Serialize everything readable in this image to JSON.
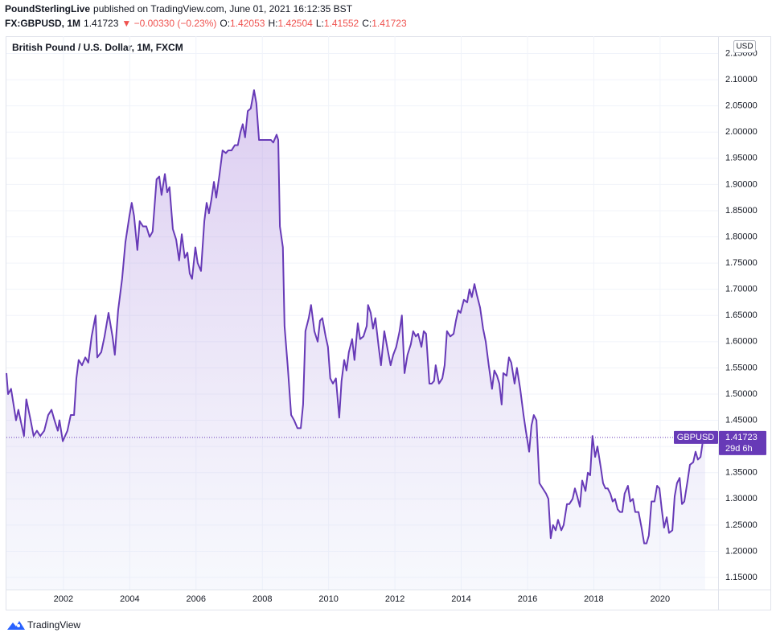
{
  "header": {
    "publisher": "PoundSterlingLive",
    "published": "published on TradingView.com, June 01, 2021 16:12:35 BST",
    "symbol": "FX:GBPUSD, 1M",
    "last": "1.41723",
    "change": "▼ −0.00330 (−0.23%)",
    "ohlc": [
      {
        "label": "O:",
        "value": "1.42053"
      },
      {
        "label": "H:",
        "value": "1.42504"
      },
      {
        "label": "L:",
        "value": "1.41552"
      },
      {
        "label": "C:",
        "value": "1.41723"
      }
    ]
  },
  "chart_data": {
    "type": "line",
    "title": "British Pound / U.S. Dollar, 1M, FXCM",
    "currency": "USD",
    "countdown": "29d 6h",
    "x": [
      2000.28,
      2000.33,
      2000.42,
      2000.57,
      2000.64,
      2000.74,
      2000.81,
      2000.88,
      2001.01,
      2001.1,
      2001.2,
      2001.3,
      2001.42,
      2001.54,
      2001.64,
      2001.73,
      2001.83,
      2001.88,
      2001.98,
      2002.12,
      2002.22,
      2002.32,
      2002.39,
      2002.46,
      2002.56,
      2002.66,
      2002.75,
      2002.85,
      2002.97,
      2003.02,
      2003.14,
      2003.24,
      2003.36,
      2003.48,
      2003.55,
      2003.65,
      2003.77,
      2003.87,
      2003.99,
      2004.06,
      2004.13,
      2004.23,
      2004.3,
      2004.4,
      2004.5,
      2004.6,
      2004.69,
      2004.81,
      2004.89,
      2004.96,
      2005.06,
      2005.13,
      2005.2,
      2005.3,
      2005.4,
      2005.49,
      2005.57,
      2005.66,
      2005.74,
      2005.81,
      2005.88,
      2005.98,
      2006.05,
      2006.15,
      2006.25,
      2006.32,
      2006.39,
      2006.46,
      2006.54,
      2006.61,
      2006.71,
      2006.8,
      2006.9,
      2006.97,
      2007.07,
      2007.17,
      2007.26,
      2007.34,
      2007.41,
      2007.48,
      2007.56,
      2007.65,
      2007.75,
      2007.82,
      2007.9,
      2007.99,
      2008.09,
      2008.19,
      2008.26,
      2008.33,
      2008.43,
      2008.48,
      2008.53,
      2008.62,
      2008.67,
      2008.77,
      2008.87,
      2008.96,
      2009.06,
      2009.16,
      2009.23,
      2009.3,
      2009.4,
      2009.47,
      2009.57,
      2009.67,
      2009.74,
      2009.81,
      2009.91,
      2009.98,
      2010.05,
      2010.13,
      2010.22,
      2010.32,
      2010.39,
      2010.47,
      2010.54,
      2010.61,
      2010.71,
      2010.78,
      2010.88,
      2010.95,
      2011.05,
      2011.15,
      2011.19,
      2011.27,
      2011.34,
      2011.41,
      2011.51,
      2011.58,
      2011.68,
      2011.78,
      2011.87,
      2011.95,
      2012.04,
      2012.14,
      2012.21,
      2012.29,
      2012.38,
      2012.48,
      2012.55,
      2012.63,
      2012.7,
      2012.8,
      2012.87,
      2012.94,
      2013.04,
      2013.11,
      2013.18,
      2013.23,
      2013.33,
      2013.43,
      2013.5,
      2013.57,
      2013.67,
      2013.77,
      2013.84,
      2013.91,
      2013.98,
      2014.08,
      2014.18,
      2014.25,
      2014.32,
      2014.4,
      2014.47,
      2014.57,
      2014.66,
      2014.74,
      2014.83,
      2014.93,
      2015.0,
      2015.08,
      2015.15,
      2015.22,
      2015.27,
      2015.37,
      2015.44,
      2015.51,
      2015.61,
      2015.68,
      2015.78,
      2015.88,
      2015.95,
      2016.05,
      2016.12,
      2016.19,
      2016.27,
      2016.36,
      2016.46,
      2016.56,
      2016.63,
      2016.7,
      2016.77,
      2016.85,
      2016.92,
      2017.02,
      2017.09,
      2017.19,
      2017.26,
      2017.36,
      2017.43,
      2017.5,
      2017.58,
      2017.65,
      2017.75,
      2017.82,
      2017.89,
      2017.96,
      2018.04,
      2018.11,
      2018.21,
      2018.28,
      2018.35,
      2018.42,
      2018.5,
      2018.57,
      2018.64,
      2018.72,
      2018.79,
      2018.86,
      2018.93,
      2019.03,
      2019.1,
      2019.18,
      2019.25,
      2019.35,
      2019.44,
      2019.52,
      2019.59,
      2019.66,
      2019.74,
      2019.83,
      2019.91,
      2019.98,
      2020.05,
      2020.12,
      2020.2,
      2020.27,
      2020.37,
      2020.44,
      2020.51,
      2020.59,
      2020.66,
      2020.73,
      2020.83,
      2020.9,
      2021.0,
      2021.07,
      2021.14,
      2021.22,
      2021.29,
      2021.36
    ],
    "series": [
      {
        "name": "GBPUSD",
        "color": "#673ab7",
        "values": [
          1.54,
          1.5,
          1.51,
          1.45,
          1.47,
          1.44,
          1.42,
          1.49,
          1.45,
          1.42,
          1.43,
          1.42,
          1.43,
          1.46,
          1.47,
          1.45,
          1.43,
          1.45,
          1.41,
          1.43,
          1.46,
          1.46,
          1.53,
          1.565,
          1.555,
          1.57,
          1.56,
          1.61,
          1.65,
          1.57,
          1.58,
          1.61,
          1.655,
          1.61,
          1.575,
          1.66,
          1.72,
          1.79,
          1.84,
          1.865,
          1.84,
          1.775,
          1.83,
          1.82,
          1.82,
          1.8,
          1.81,
          1.91,
          1.915,
          1.88,
          1.92,
          1.885,
          1.895,
          1.815,
          1.795,
          1.755,
          1.805,
          1.76,
          1.77,
          1.73,
          1.72,
          1.78,
          1.75,
          1.735,
          1.83,
          1.865,
          1.845,
          1.87,
          1.905,
          1.875,
          1.92,
          1.965,
          1.96,
          1.965,
          1.965,
          1.975,
          1.975,
          2.0,
          2.015,
          1.99,
          2.04,
          2.045,
          2.08,
          2.055,
          1.985,
          1.985,
          1.985,
          1.985,
          1.985,
          1.98,
          1.995,
          1.985,
          1.82,
          1.78,
          1.63,
          1.55,
          1.46,
          1.45,
          1.435,
          1.435,
          1.48,
          1.62,
          1.645,
          1.67,
          1.62,
          1.6,
          1.64,
          1.645,
          1.61,
          1.59,
          1.53,
          1.52,
          1.53,
          1.455,
          1.525,
          1.565,
          1.545,
          1.58,
          1.605,
          1.565,
          1.635,
          1.605,
          1.61,
          1.63,
          1.67,
          1.655,
          1.625,
          1.645,
          1.59,
          1.555,
          1.62,
          1.585,
          1.555,
          1.575,
          1.59,
          1.62,
          1.65,
          1.54,
          1.575,
          1.595,
          1.62,
          1.61,
          1.615,
          1.59,
          1.62,
          1.615,
          1.52,
          1.52,
          1.525,
          1.555,
          1.52,
          1.53,
          1.555,
          1.62,
          1.61,
          1.615,
          1.64,
          1.66,
          1.655,
          1.68,
          1.675,
          1.7,
          1.685,
          1.71,
          1.69,
          1.665,
          1.625,
          1.6,
          1.555,
          1.51,
          1.545,
          1.535,
          1.52,
          1.48,
          1.54,
          1.535,
          1.57,
          1.56,
          1.52,
          1.55,
          1.51,
          1.46,
          1.43,
          1.39,
          1.44,
          1.46,
          1.45,
          1.33,
          1.32,
          1.31,
          1.3,
          1.225,
          1.25,
          1.24,
          1.26,
          1.24,
          1.25,
          1.29,
          1.29,
          1.3,
          1.32,
          1.305,
          1.285,
          1.335,
          1.315,
          1.35,
          1.345,
          1.42,
          1.38,
          1.4,
          1.36,
          1.33,
          1.32,
          1.32,
          1.31,
          1.295,
          1.3,
          1.28,
          1.275,
          1.275,
          1.31,
          1.325,
          1.295,
          1.3,
          1.275,
          1.275,
          1.245,
          1.215,
          1.215,
          1.23,
          1.295,
          1.295,
          1.325,
          1.32,
          1.28,
          1.245,
          1.265,
          1.235,
          1.24,
          1.305,
          1.33,
          1.34,
          1.29,
          1.295,
          1.335,
          1.365,
          1.37,
          1.39,
          1.375,
          1.38,
          1.41,
          1.41723
        ]
      }
    ],
    "xlim": [
      2000.28,
      2021.75
    ],
    "ylim": [
      1.127,
      2.183
    ],
    "xticks": [
      2002,
      2004,
      2006,
      2008,
      2010,
      2012,
      2014,
      2016,
      2018,
      2020
    ],
    "yticks": [
      {
        "value": 1.15,
        "label": "1.15000"
      },
      {
        "value": 1.2,
        "label": "1.20000"
      },
      {
        "value": 1.25,
        "label": "1.25000"
      },
      {
        "value": 1.3,
        "label": "1.30000"
      },
      {
        "value": 1.35,
        "label": "1.35000"
      },
      {
        "value": 1.4,
        "label": "1.40000"
      },
      {
        "value": 1.45,
        "label": "1.45000"
      },
      {
        "value": 1.5,
        "label": "1.50000"
      },
      {
        "value": 1.55,
        "label": "1.55000"
      },
      {
        "value": 1.6,
        "label": "1.60000"
      },
      {
        "value": 1.65,
        "label": "1.65000"
      },
      {
        "value": 1.7,
        "label": "1.70000"
      },
      {
        "value": 1.75,
        "label": "1.75000"
      },
      {
        "value": 1.8,
        "label": "1.80000"
      },
      {
        "value": 1.85,
        "label": "1.85000"
      },
      {
        "value": 1.9,
        "label": "1.90000"
      },
      {
        "value": 1.95,
        "label": "1.95000"
      },
      {
        "value": 2.0,
        "label": "2.00000"
      },
      {
        "value": 2.05,
        "label": "2.05000"
      },
      {
        "value": 2.1,
        "label": "2.10000"
      },
      {
        "value": 2.15,
        "label": "2.15000"
      }
    ],
    "grid": true
  },
  "footer": {
    "logo": "TradingView"
  }
}
